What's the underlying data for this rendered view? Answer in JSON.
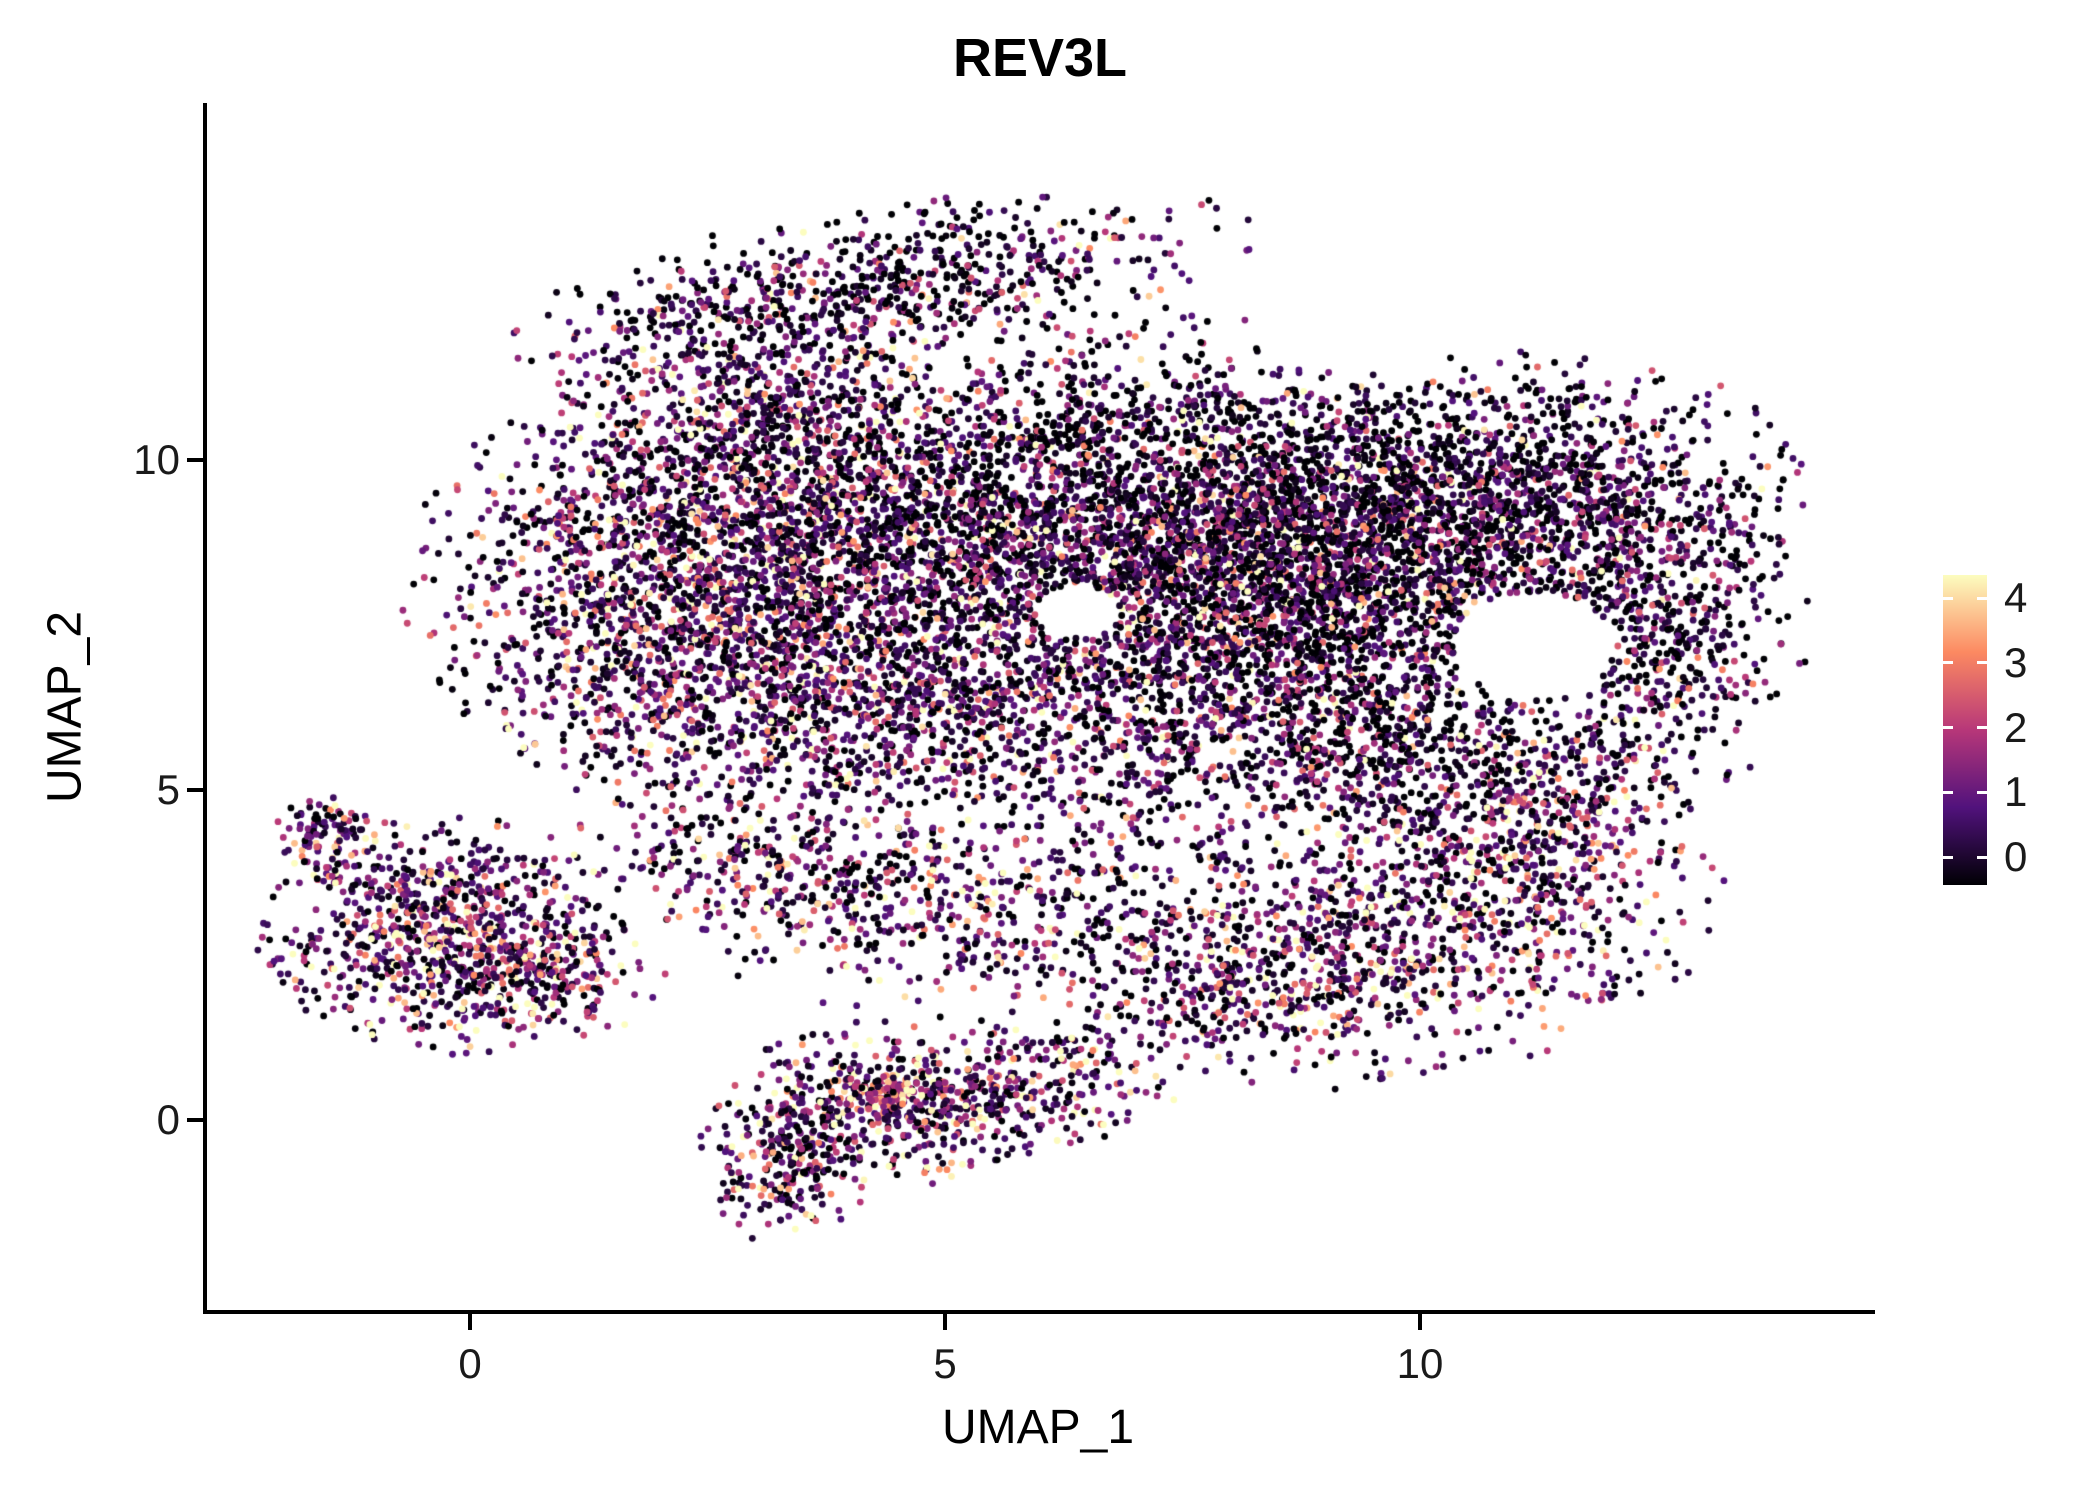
{
  "chart_data": {
    "type": "scatter",
    "title": "REV3L",
    "xlabel": "UMAP_1",
    "ylabel": "UMAP_2",
    "xlim": [
      -2.79,
      14.74
    ],
    "ylim": [
      -2.88,
      15.38
    ],
    "grid": false,
    "legend_position": "right",
    "x_ticks": [
      {
        "value": 0,
        "label": "0"
      },
      {
        "value": 5,
        "label": "5"
      },
      {
        "value": 10,
        "label": "10"
      }
    ],
    "y_ticks": [
      {
        "value": 0,
        "label": "0"
      },
      {
        "value": 5,
        "label": "5"
      },
      {
        "value": 10,
        "label": "10"
      }
    ],
    "colorbar": {
      "vmin": 0,
      "vmax": 4,
      "colormap": "magma",
      "colormap_stops": [
        "#000004",
        "#51127c",
        "#b73779",
        "#fc8961",
        "#fcfdbf"
      ],
      "ticks": [
        {
          "value": 0,
          "label": "0"
        },
        {
          "value": 1,
          "label": "1"
        },
        {
          "value": 2,
          "label": "2"
        },
        {
          "value": 3,
          "label": "3"
        },
        {
          "value": 4,
          "label": "4"
        }
      ]
    },
    "point_radius": 3.4,
    "seed": 42,
    "point_clusters": [
      {
        "cx": 2.7,
        "cy": 8.2,
        "sx": 1.5,
        "sy": 1.5,
        "rot": 0,
        "n": 2600,
        "p0": 0.15,
        "mean": 1.3,
        "base": 0
      },
      {
        "cx": 6.0,
        "cy": 9.2,
        "sx": 1.8,
        "sy": 1.5,
        "rot": 0,
        "n": 2400,
        "p0": 0.25,
        "mean": 1.1,
        "base": 0
      },
      {
        "cx": 8.7,
        "cy": 8.5,
        "sx": 1.6,
        "sy": 1.3,
        "rot": 0,
        "n": 3000,
        "p0": 0.32,
        "mean": 1.15,
        "base": 0
      },
      {
        "cx": 11.2,
        "cy": 9.5,
        "sx": 1.3,
        "sy": 0.95,
        "rot": 0,
        "n": 1100,
        "p0": 0.3,
        "mean": 1.0,
        "base": 0
      },
      {
        "cx": 4.3,
        "cy": 12.7,
        "sx": 1.8,
        "sy": 0.5,
        "rot": 0.22,
        "n": 650,
        "p0": 0.3,
        "mean": 1.0,
        "base": 0
      },
      {
        "cx": 2.9,
        "cy": 11.0,
        "sx": 0.9,
        "sy": 0.9,
        "rot": 0,
        "n": 450,
        "p0": 0.2,
        "mean": 1.2,
        "base": 0
      },
      {
        "cx": 12.5,
        "cy": 7.4,
        "sx": 0.7,
        "sy": 1.2,
        "rot": 0,
        "n": 550,
        "p0": 0.25,
        "mean": 1.1,
        "base": 0
      },
      {
        "cx": 5.4,
        "cy": 6.1,
        "sx": 2.2,
        "sy": 0.95,
        "rot": 0,
        "n": 1300,
        "p0": 0.18,
        "mean": 1.3,
        "base": 0
      },
      {
        "cx": 9.6,
        "cy": 5.6,
        "sx": 1.4,
        "sy": 0.9,
        "rot": 0,
        "n": 800,
        "p0": 0.25,
        "mean": 1.1,
        "base": 0
      },
      {
        "cx": 10.0,
        "cy": 2.9,
        "sx": 1.5,
        "sy": 1.0,
        "rot": 0.35,
        "n": 1000,
        "p0": 0.12,
        "mean": 1.5,
        "base": 0
      },
      {
        "cx": 11.3,
        "cy": 4.6,
        "sx": 0.6,
        "sy": 0.7,
        "rot": 0,
        "n": 250,
        "p0": 0.15,
        "mean": 1.3,
        "base": 0
      },
      {
        "cx": 5.9,
        "cy": 3.1,
        "sx": 1.7,
        "sy": 0.7,
        "rot": 0,
        "n": 550,
        "p0": 0.15,
        "mean": 1.4,
        "base": 0
      },
      {
        "cx": 3.2,
        "cy": 3.9,
        "sx": 1.0,
        "sy": 0.55,
        "rot": -0.2,
        "n": 300,
        "p0": 0.15,
        "mean": 1.4,
        "base": 0
      },
      {
        "cx": 7.9,
        "cy": 1.9,
        "sx": 0.8,
        "sy": 0.5,
        "rot": 0,
        "n": 200,
        "p0": 0.15,
        "mean": 1.3,
        "base": 0
      },
      {
        "cx": -0.3,
        "cy": 2.8,
        "sx": 0.85,
        "sy": 0.8,
        "rot": 0,
        "n": 850,
        "p0": 0.1,
        "mean": 1.5,
        "base": 0
      },
      {
        "cx": -1.55,
        "cy": 4.35,
        "sx": 0.25,
        "sy": 0.35,
        "rot": 0,
        "n": 90,
        "p0": 0.1,
        "mean": 1.4,
        "base": 0
      },
      {
        "cx": 0.8,
        "cy": 2.3,
        "sx": 0.55,
        "sy": 0.5,
        "rot": 0,
        "n": 200,
        "p0": 0.12,
        "mean": 1.4,
        "base": 0
      },
      {
        "cx": 3.3,
        "cy": -0.6,
        "sx": 0.45,
        "sy": 0.55,
        "rot": 0,
        "n": 240,
        "p0": 0.1,
        "mean": 1.5,
        "base": 0
      },
      {
        "cx": 4.4,
        "cy": 0.25,
        "sx": 0.75,
        "sy": 0.55,
        "rot": 0,
        "n": 430,
        "p0": 0.1,
        "mean": 1.6,
        "base": 0
      },
      {
        "cx": 4.35,
        "cy": 0.35,
        "sx": 0.22,
        "sy": 0.18,
        "rot": 0,
        "n": 70,
        "p0": 0.0,
        "mean": 1.2,
        "base": 1.5
      },
      {
        "cx": 5.8,
        "cy": 0.5,
        "sx": 0.8,
        "sy": 0.45,
        "rot": 0.2,
        "n": 280,
        "p0": 0.12,
        "mean": 1.5,
        "base": 0
      }
    ],
    "holes": [
      {
        "cx": 11.2,
        "cy": 7.2,
        "rx": 0.85,
        "ry": 0.8
      },
      {
        "cx": 6.4,
        "cy": 7.7,
        "rx": 0.45,
        "ry": 0.4
      }
    ]
  }
}
